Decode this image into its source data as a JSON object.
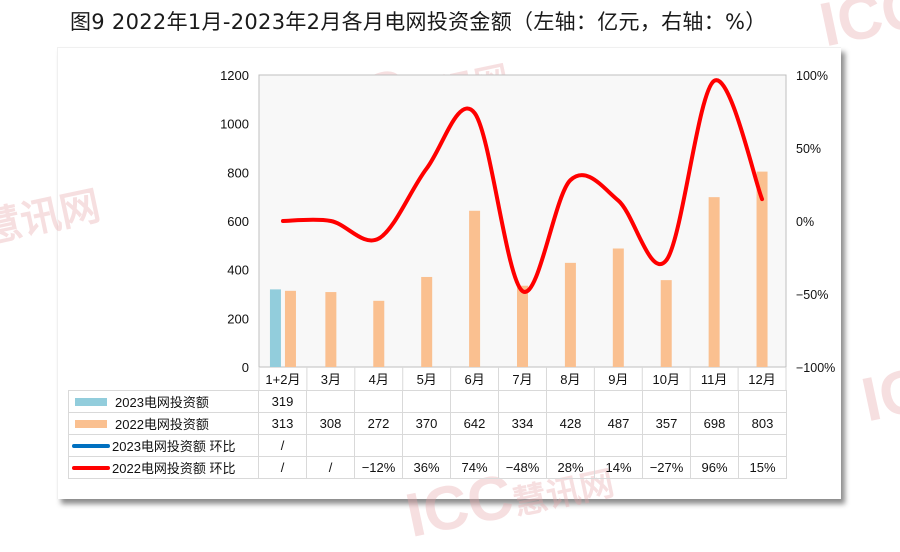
{
  "title": "图9 2022年1月-2023年2月各月电网投资金额（左轴：亿元，右轴：%）",
  "watermark": {
    "text_latin": "ICC",
    "text_cn": "慧讯网"
  },
  "colors": {
    "bar_2023": "#92cddc",
    "bar_2022": "#fac090",
    "line_2023": "#0070c0",
    "line_2022": "#ff0000",
    "plot_bg": "#f8f8f8"
  },
  "chart_data": {
    "type": "bar+line",
    "title": "图9 2022年1月-2023年2月各月电网投资金额（左轴：亿元，右轴：%）",
    "categories": [
      "1+2月",
      "3月",
      "4月",
      "5月",
      "6月",
      "7月",
      "8月",
      "9月",
      "10月",
      "11月",
      "12月"
    ],
    "left_axis": {
      "label": "亿元",
      "ylim": [
        0,
        1200
      ],
      "ticks": [
        "0",
        "200",
        "400",
        "600",
        "800",
        "1000",
        "1200"
      ]
    },
    "right_axis": {
      "label": "%",
      "ylim": [
        -100,
        100
      ],
      "ticks": [
        "-100%",
        "-50%",
        "0%",
        "50%",
        "100%"
      ]
    },
    "series": [
      {
        "name": "2023电网投资额",
        "type": "bar",
        "axis": "left",
        "values": [
          319,
          null,
          null,
          null,
          null,
          null,
          null,
          null,
          null,
          null,
          null
        ]
      },
      {
        "name": "2022电网投资额",
        "type": "bar",
        "axis": "left",
        "values": [
          313,
          308,
          272,
          370,
          642,
          334,
          428,
          487,
          357,
          698,
          803
        ]
      },
      {
        "name": "2023电网投资额 环比",
        "type": "line",
        "axis": "right",
        "values": [
          null,
          null,
          null,
          null,
          null,
          null,
          null,
          null,
          null,
          null,
          null
        ]
      },
      {
        "name": "2022电网投资额 环比",
        "type": "line",
        "axis": "right",
        "values": [
          0,
          0,
          -12,
          36,
          74,
          -48,
          28,
          14,
          -27,
          96,
          15
        ]
      }
    ],
    "grid": false,
    "legend_position": "data-table-below"
  },
  "table": {
    "rows": [
      {
        "legend": "2023电网投资额",
        "cells": [
          "319",
          "",
          "",
          "",
          "",
          "",
          "",
          "",
          "",
          "",
          ""
        ]
      },
      {
        "legend": "2022电网投资额",
        "cells": [
          "313",
          "308",
          "272",
          "370",
          "642",
          "334",
          "428",
          "487",
          "357",
          "698",
          "803"
        ]
      },
      {
        "legend": "2023电网投资额  环比",
        "cells": [
          "/",
          "",
          "",
          "",
          "",
          "",
          "",
          "",
          "",
          "",
          ""
        ]
      },
      {
        "legend": "2022电网投资额  环比",
        "cells": [
          "/",
          "/",
          "−12%",
          "36%",
          "74%",
          "−48%",
          "28%",
          "14%",
          "−27%",
          "96%",
          "15%"
        ]
      }
    ]
  }
}
